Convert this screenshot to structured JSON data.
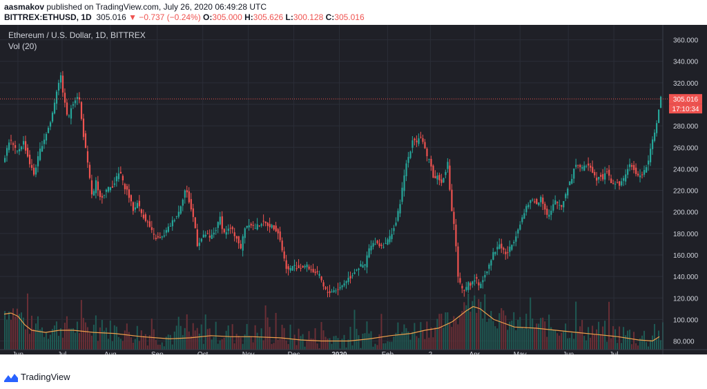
{
  "header": {
    "author": "aasmakov",
    "published_text": " published on TradingView.com, July 26, 2020 06:49:28 UTC",
    "symbol": "BITTREX:ETHUSD, 1D",
    "last_price": "305.016",
    "change": "▼ −0.737 (−0.24%)",
    "o_label": "O:",
    "o_value": "305.000",
    "h_label": "H:",
    "h_value": "305.626",
    "l_label": "L:",
    "l_value": "300.128",
    "c_label": "C:",
    "c_value": "305.016"
  },
  "chart_header": {
    "title": "Ethereum / U.S. Dollar, 1D, BITTREX",
    "vol_label": "Vol (20)"
  },
  "price_tag": {
    "price": "305.016",
    "countdown": "17:10:34"
  },
  "footer": {
    "brand": "TradingView"
  },
  "colors": {
    "background": "#1f2027",
    "up": "#26a69a",
    "down": "#ef5350",
    "grid": "#2b2e38",
    "axis_text": "#d1d4dc",
    "volume_ma": "#f0a04b",
    "brand": "#2962ff"
  },
  "chart_data": {
    "type": "candlestick",
    "title": "Ethereum / U.S. Dollar, 1D, BITTREX",
    "ylim": [
      72,
      370
    ],
    "y_ticks": [
      80,
      100,
      120,
      140,
      160,
      180,
      200,
      220,
      240,
      260,
      280,
      300,
      320,
      340,
      360
    ],
    "x_tick_labels": [
      "Jun",
      "Jul",
      "Aug",
      "Sep",
      "Oct",
      "Nov",
      "Dec",
      "2020",
      "Feb",
      "2",
      "Apr",
      "May",
      "Jun",
      "Jul"
    ],
    "x_tick_index": [
      20,
      84,
      154,
      222,
      288,
      354,
      420,
      486,
      556,
      618,
      682,
      748,
      818,
      884
    ],
    "grid": true,
    "last_price": 305.016,
    "price_path": [
      [
        0,
        245
      ],
      [
        10,
        268
      ],
      [
        20,
        255
      ],
      [
        30,
        265
      ],
      [
        40,
        243
      ],
      [
        45,
        235
      ],
      [
        55,
        260
      ],
      [
        60,
        268
      ],
      [
        70,
        285
      ],
      [
        80,
        320
      ],
      [
        84,
        325
      ],
      [
        90,
        300
      ],
      [
        95,
        285
      ],
      [
        100,
        300
      ],
      [
        110,
        310
      ],
      [
        115,
        280
      ],
      [
        120,
        258
      ],
      [
        125,
        235
      ],
      [
        130,
        212
      ],
      [
        135,
        228
      ],
      [
        140,
        212
      ],
      [
        150,
        220
      ],
      [
        160,
        225
      ],
      [
        170,
        238
      ],
      [
        175,
        225
      ],
      [
        180,
        220
      ],
      [
        190,
        200
      ],
      [
        195,
        210
      ],
      [
        200,
        200
      ],
      [
        210,
        190
      ],
      [
        220,
        176
      ],
      [
        230,
        175
      ],
      [
        245,
        190
      ],
      [
        255,
        200
      ],
      [
        265,
        222
      ],
      [
        270,
        210
      ],
      [
        278,
        190
      ],
      [
        282,
        170
      ],
      [
        288,
        175
      ],
      [
        295,
        180
      ],
      [
        300,
        175
      ],
      [
        310,
        185
      ],
      [
        315,
        195
      ],
      [
        320,
        180
      ],
      [
        330,
        185
      ],
      [
        340,
        175
      ],
      [
        345,
        165
      ],
      [
        350,
        185
      ],
      [
        358,
        190
      ],
      [
        365,
        185
      ],
      [
        375,
        190
      ],
      [
        385,
        188
      ],
      [
        395,
        185
      ],
      [
        400,
        180
      ],
      [
        405,
        165
      ],
      [
        410,
        150
      ],
      [
        415,
        145
      ],
      [
        420,
        150
      ],
      [
        430,
        148
      ],
      [
        440,
        150
      ],
      [
        450,
        145
      ],
      [
        460,
        140
      ],
      [
        465,
        130
      ],
      [
        470,
        125
      ],
      [
        480,
        127
      ],
      [
        490,
        130
      ],
      [
        500,
        138
      ],
      [
        505,
        140
      ],
      [
        510,
        145
      ],
      [
        515,
        148
      ],
      [
        520,
        150
      ],
      [
        525,
        150
      ],
      [
        530,
        165
      ],
      [
        540,
        172
      ],
      [
        550,
        168
      ],
      [
        560,
        175
      ],
      [
        570,
        190
      ],
      [
        575,
        205
      ],
      [
        580,
        225
      ],
      [
        585,
        245
      ],
      [
        590,
        255
      ],
      [
        595,
        270
      ],
      [
        600,
        265
      ],
      [
        605,
        272
      ],
      [
        610,
        262
      ],
      [
        615,
        250
      ],
      [
        620,
        248
      ],
      [
        625,
        228
      ],
      [
        630,
        235
      ],
      [
        635,
        225
      ],
      [
        645,
        245
      ],
      [
        650,
        205
      ],
      [
        655,
        185
      ],
      [
        660,
        140
      ],
      [
        665,
        128
      ],
      [
        670,
        125
      ],
      [
        675,
        135
      ],
      [
        680,
        132
      ],
      [
        685,
        140
      ],
      [
        690,
        130
      ],
      [
        700,
        143
      ],
      [
        710,
        160
      ],
      [
        720,
        170
      ],
      [
        730,
        160
      ],
      [
        740,
        172
      ],
      [
        750,
        190
      ],
      [
        760,
        205
      ],
      [
        765,
        210
      ],
      [
        770,
        212
      ],
      [
        775,
        205
      ],
      [
        780,
        215
      ],
      [
        790,
        195
      ],
      [
        795,
        200
      ],
      [
        800,
        210
      ],
      [
        810,
        205
      ],
      [
        815,
        215
      ],
      [
        820,
        225
      ],
      [
        825,
        232
      ],
      [
        830,
        245
      ],
      [
        835,
        243
      ],
      [
        840,
        240
      ],
      [
        850,
        245
      ],
      [
        855,
        238
      ],
      [
        860,
        230
      ],
      [
        865,
        235
      ],
      [
        870,
        232
      ],
      [
        875,
        240
      ],
      [
        880,
        230
      ],
      [
        885,
        225
      ],
      [
        890,
        228
      ],
      [
        895,
        225
      ],
      [
        900,
        230
      ],
      [
        905,
        240
      ],
      [
        910,
        243
      ],
      [
        915,
        240
      ],
      [
        920,
        232
      ],
      [
        925,
        235
      ],
      [
        930,
        238
      ],
      [
        935,
        245
      ],
      [
        940,
        260
      ],
      [
        945,
        275
      ],
      [
        950,
        290
      ],
      [
        953,
        305
      ]
    ],
    "volume_ma_path": [
      [
        0,
        105
      ],
      [
        10,
        106
      ],
      [
        20,
        103
      ],
      [
        30,
        95
      ],
      [
        40,
        90
      ],
      [
        60,
        88
      ],
      [
        80,
        90
      ],
      [
        100,
        90
      ],
      [
        130,
        88
      ],
      [
        160,
        87
      ],
      [
        200,
        84
      ],
      [
        240,
        82
      ],
      [
        270,
        83
      ],
      [
        300,
        85
      ],
      [
        330,
        84
      ],
      [
        360,
        84
      ],
      [
        400,
        83
      ],
      [
        430,
        81
      ],
      [
        460,
        80
      ],
      [
        500,
        80
      ],
      [
        530,
        82
      ],
      [
        560,
        85
      ],
      [
        590,
        87
      ],
      [
        610,
        90
      ],
      [
        630,
        92
      ],
      [
        650,
        98
      ],
      [
        670,
        108
      ],
      [
        680,
        112
      ],
      [
        690,
        110
      ],
      [
        710,
        100
      ],
      [
        740,
        93
      ],
      [
        770,
        92
      ],
      [
        800,
        90
      ],
      [
        830,
        88
      ],
      [
        860,
        86
      ],
      [
        890,
        84
      ],
      [
        920,
        81
      ],
      [
        940,
        80
      ],
      [
        950,
        84
      ]
    ]
  }
}
